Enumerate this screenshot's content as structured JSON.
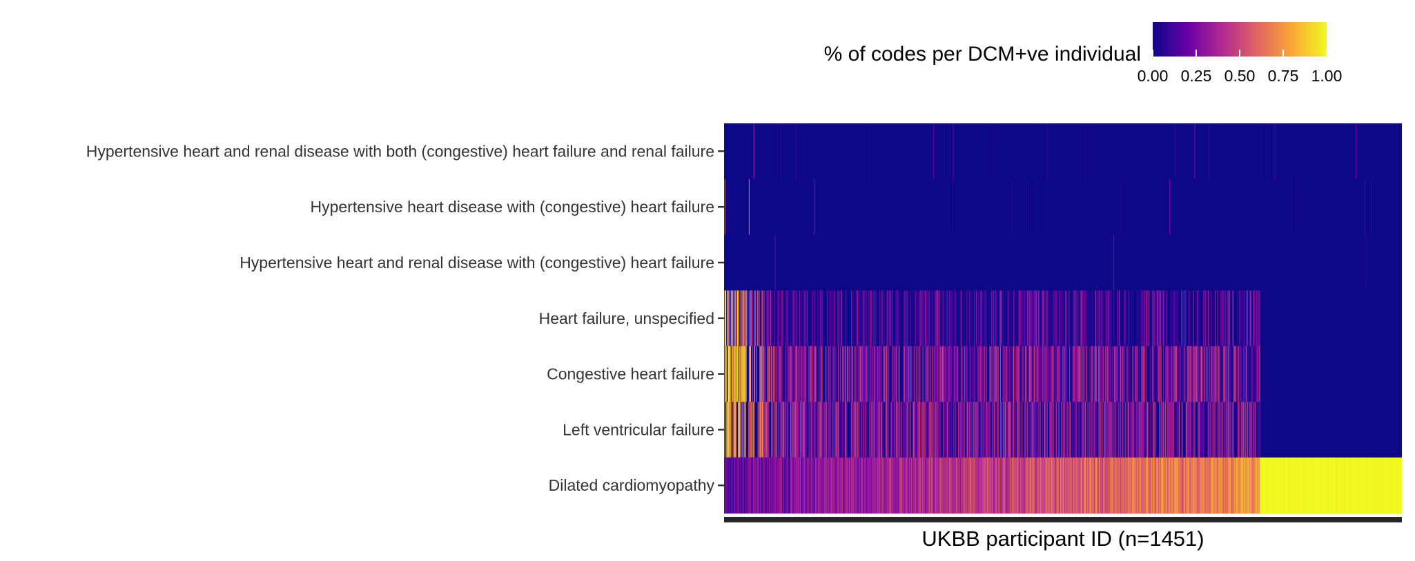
{
  "chart_data": {
    "type": "heatmap",
    "title": "",
    "xlabel": "UKBB participant ID (n=1451)",
    "ylabel": "",
    "n_participants": 1451,
    "rows": [
      "Hypertensive heart and renal disease with both (congestive) heart failure and renal failure",
      "Hypertensive heart disease with (congestive) heart failure",
      "Hypertensive heart and renal disease with (congestive) heart failure",
      "Heart failure, unspecified",
      "Congestive heart failure",
      "Left ventricular failure",
      "Dilated cardiomyopathy"
    ],
    "legend": {
      "title": "% of codes per DCM+ve individual",
      "ticks": [
        "0.00",
        "0.25",
        "0.50",
        "0.75",
        "1.00"
      ],
      "tick_values": [
        0,
        0.25,
        0.5,
        0.75,
        1
      ],
      "range": [
        0,
        1
      ],
      "colormap": "plasma",
      "colors": [
        "#0d0887",
        "#6a00a8",
        "#b12a90",
        "#e16462",
        "#fca636",
        "#f0f921"
      ],
      "position": "top-right"
    },
    "row_summary": [
      {
        "row": "Hypertensive heart and renal disease with both (congestive) heart failure and renal failure",
        "typical_value": 0.0,
        "nonzero_fraction": 0.01
      },
      {
        "row": "Hypertensive heart disease with (congestive) heart failure",
        "typical_value": 0.0,
        "nonzero_fraction": 0.005
      },
      {
        "row": "Hypertensive heart and renal disease with (congestive) heart failure",
        "typical_value": 0.0,
        "nonzero_fraction": 0.002
      },
      {
        "row": "Heart failure, unspecified",
        "typical_value": 0.1,
        "nonzero_fraction": 0.45,
        "coded_until_fraction": 0.79
      },
      {
        "row": "Congestive heart failure",
        "typical_value": 0.25,
        "nonzero_fraction": 0.55,
        "coded_until_fraction": 0.79
      },
      {
        "row": "Left ventricular failure",
        "typical_value": 0.25,
        "nonzero_fraction": 0.55,
        "coded_until_fraction": 0.79
      },
      {
        "row": "Dilated cardiomyopathy",
        "typical_value": 0.55,
        "nonzero_fraction": 1.0,
        "all_ones_from_fraction": 0.79
      }
    ],
    "grid": false
  }
}
